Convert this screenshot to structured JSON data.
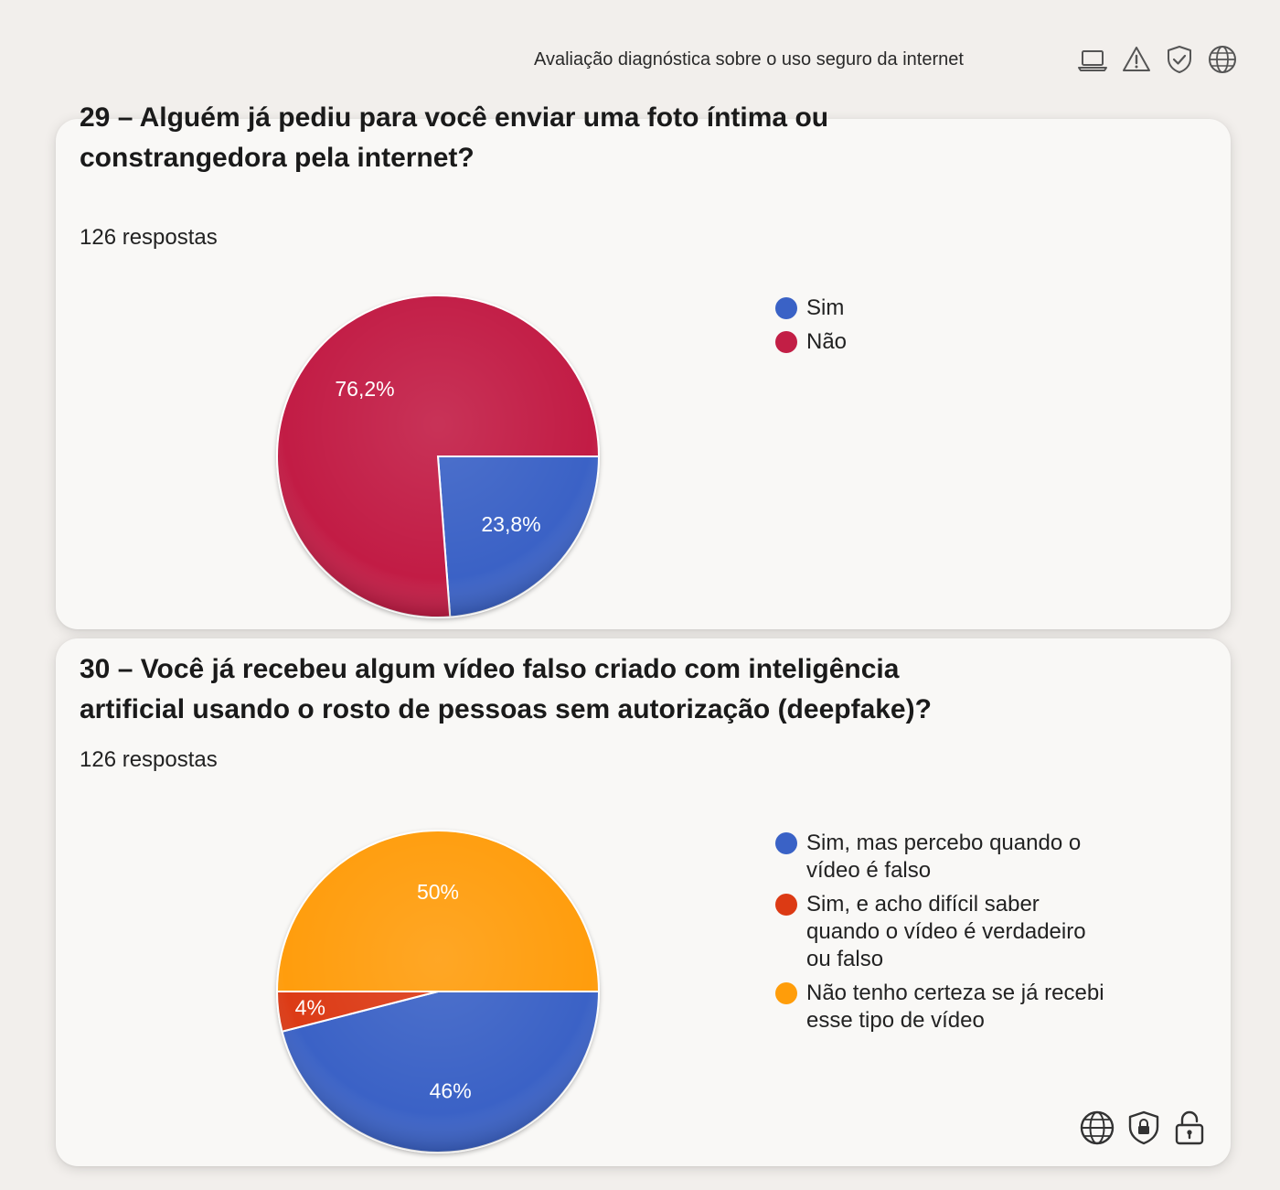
{
  "header": {
    "title": "Avaliação diagnóstica sobre o uso seguro da internet",
    "icons": [
      "laptop-icon",
      "warning-icon",
      "shield-check-icon",
      "globe-icon"
    ]
  },
  "questions": [
    {
      "title": "29 – Alguém já pediu para você enviar uma foto íntima ou constrangedora pela internet?",
      "responses": "126 respostas"
    },
    {
      "title": "30 – Você já recebeu algum vídeo falso criado com inteligência artificial usando o rosto de pessoas sem autorização (deepfake)?",
      "responses": "126 respostas"
    }
  ],
  "chart_data": [
    {
      "type": "pie",
      "categories": [
        "Sim",
        "Não"
      ],
      "values": [
        23.8,
        76.2
      ],
      "labels": [
        "23,8%",
        "76,2%"
      ],
      "colors": [
        "#3a62c6",
        "#c21e45"
      ],
      "legend_placement": "right"
    },
    {
      "type": "pie",
      "categories": [
        "Sim, mas percebo quando o vídeo é falso",
        "Sim, e acho difícil saber quando o vídeo é verdadeiro ou falso",
        "Não tenho certeza se já recebi esse tipo de vídeo"
      ],
      "values": [
        46,
        4,
        50
      ],
      "labels": [
        "46%",
        "4%",
        "50%"
      ],
      "colors": [
        "#3a62c6",
        "#dc3a14",
        "#ff9d0a"
      ],
      "legend_placement": "right"
    }
  ],
  "footer": {
    "icons": [
      "globe-icon",
      "shield-lock-icon",
      "padlock-icon"
    ]
  }
}
